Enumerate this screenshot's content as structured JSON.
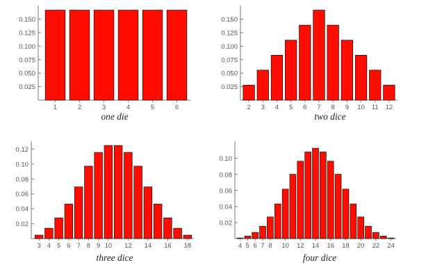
{
  "chart_data": [
    {
      "type": "bar",
      "title": "one die",
      "x_ticks": [
        "1",
        "2",
        "3",
        "4",
        "5",
        "6"
      ],
      "y_ticks": [
        "0.025",
        "0.050",
        "0.075",
        "0.100",
        "0.125",
        "0.150"
      ],
      "ylim": [
        0,
        0.17
      ],
      "categories": [
        1,
        2,
        3,
        4,
        5,
        6
      ],
      "values": [
        0.1667,
        0.1667,
        0.1667,
        0.1667,
        0.1667,
        0.1667
      ]
    },
    {
      "type": "bar",
      "title": "two dice",
      "x_ticks": [
        "2",
        "3",
        "4",
        "5",
        "6",
        "7",
        "8",
        "9",
        "10",
        "11",
        "12"
      ],
      "y_ticks": [
        "0.025",
        "0.050",
        "0.075",
        "0.100",
        "0.125",
        "0.150"
      ],
      "ylim": [
        0,
        0.17
      ],
      "categories": [
        2,
        3,
        4,
        5,
        6,
        7,
        8,
        9,
        10,
        11,
        12
      ],
      "values": [
        0.0278,
        0.0556,
        0.0833,
        0.1111,
        0.1389,
        0.1667,
        0.1389,
        0.1111,
        0.0833,
        0.0556,
        0.0278
      ]
    },
    {
      "type": "bar",
      "title": "three dice",
      "x_ticks": [
        "3",
        "4",
        "5",
        "6",
        "7",
        "8",
        "9",
        "10",
        "12",
        "14",
        "16",
        "18"
      ],
      "y_ticks": [
        "0.02",
        "0.04",
        "0.06",
        "0.08",
        "0.10",
        "0.12"
      ],
      "ylim": [
        0,
        0.127
      ],
      "categories": [
        3,
        4,
        5,
        6,
        7,
        8,
        9,
        10,
        11,
        12,
        13,
        14,
        15,
        16,
        17,
        18
      ],
      "values": [
        0.0046,
        0.0139,
        0.0278,
        0.0463,
        0.0694,
        0.0972,
        0.1157,
        0.125,
        0.125,
        0.1157,
        0.0972,
        0.0694,
        0.0463,
        0.0278,
        0.0139,
        0.0046
      ]
    },
    {
      "type": "bar",
      "title": "four dice",
      "x_ticks": [
        "4",
        "5",
        "6",
        "7",
        "8",
        "10",
        "12",
        "14",
        "16",
        "18",
        "20",
        "22",
        "24"
      ],
      "y_ticks": [
        "0.02",
        "0.04",
        "0.06",
        "0.08",
        "0.10"
      ],
      "ylim": [
        0,
        0.118
      ],
      "categories": [
        4,
        5,
        6,
        7,
        8,
        9,
        10,
        11,
        12,
        13,
        14,
        15,
        16,
        17,
        18,
        19,
        20,
        21,
        22,
        23,
        24
      ],
      "values": [
        0.0008,
        0.0031,
        0.0077,
        0.0154,
        0.027,
        0.0432,
        0.0617,
        0.0802,
        0.0965,
        0.108,
        0.1127,
        0.108,
        0.0965,
        0.0802,
        0.0617,
        0.0432,
        0.027,
        0.0154,
        0.0077,
        0.0031,
        0.0008
      ]
    }
  ]
}
